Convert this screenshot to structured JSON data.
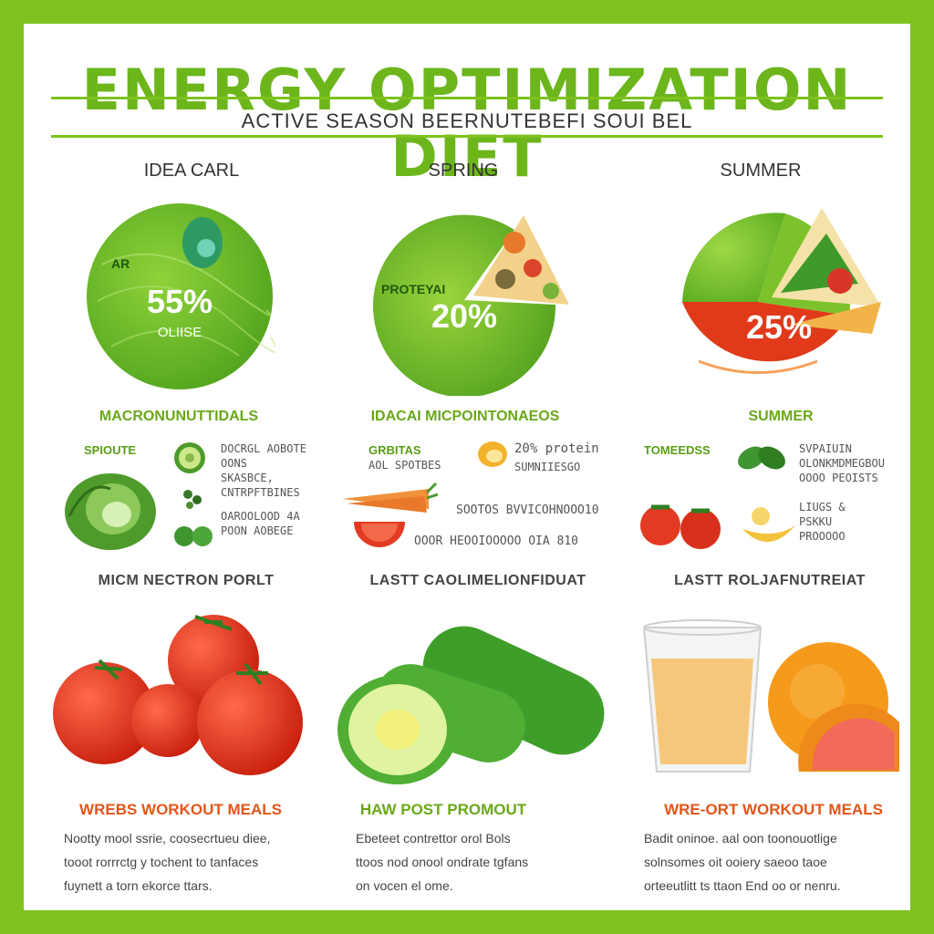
{
  "title": "ENERGY OPTIMIZATION DIET",
  "subtitle": "ACTIVE SEASON BEERNUTEBEFI SOUI BEL",
  "seasons": [
    {
      "label": "IDEA CARL",
      "percent": "55%",
      "percent_sub": "OLIISE",
      "chart_tag": "AR"
    },
    {
      "label": "SPRING",
      "percent": "20%",
      "chart_tag": "PROTEYAI"
    },
    {
      "label": "SUMMER",
      "percent": "25%"
    }
  ],
  "sections": [
    {
      "heading": "MACRONUNUTTIDALS",
      "tag": "SPIOUTE",
      "items": [
        "DOCRGL AOBOTE",
        "OONS",
        "SKASBCE,",
        "CNTRPFTBINES",
        "OAROOLOOD 4A",
        "POON AOBEGE"
      ]
    },
    {
      "heading": "IDACAI MICPOINTONAEOS",
      "tag": "GRBITAS",
      "tag2": "AOL SPOTBES",
      "items": [
        "20% protein",
        "SUMNIIESGO",
        "SOOTOS BVVICOHNOOO10",
        "OOOR HEOOIOOOOO OIA 810"
      ]
    },
    {
      "heading": "SUMMER",
      "tag": "TOMEEDSS",
      "items": [
        "SVPAIUIN",
        "OLONKMDMEGBOU",
        "OOOO PEOISTS",
        "LIUGS &",
        "PSKKU",
        "PROOOOO"
      ]
    }
  ],
  "rows": [
    "MICM NECTRON PORLT",
    "LASTT CAOLIMELIONFIDUAT",
    "LASTT ROLJAFNUTREIAT"
  ],
  "meals": [
    {
      "heading": "WREBS WORKOUT MEALS",
      "lines": [
        "Nootty mool ssrie, coosecrtueu diee,",
        "tooot rorrrctg y tochent to tanfaces",
        "fuynett a torn ekorce ttars."
      ]
    },
    {
      "heading": "HAW POST PROMOUT",
      "lines": [
        "Ebeteet contrettor orol Bols",
        "ttoos  nod onool ondrate tgfans",
        "on  vocen el ome."
      ]
    },
    {
      "heading": "WRE-ORT WORKOUT MEALS",
      "lines": [
        "Badit oninoe. aal oon toonouotlige",
        "solnsomes oit  ooiery  saeoo  taoe",
        "orteeutlitt ts ttaon  End oo or nenru."
      ]
    }
  ],
  "colors": {
    "frame": "#7dc21e",
    "title": "#6cb61c",
    "accent_red": "#e2561a",
    "pie_green": "#68b52a",
    "pie_red": "#e03a1a"
  },
  "icons": [
    "cabbage-icon",
    "avocado-icon",
    "herb-icon",
    "carrot-icon",
    "tomato-slice-icon",
    "lemon-icon",
    "spinach-icon",
    "tomato-icon",
    "banana-icon",
    "juice-glass-icon",
    "grapefruit-icon",
    "cucumber-icon"
  ]
}
